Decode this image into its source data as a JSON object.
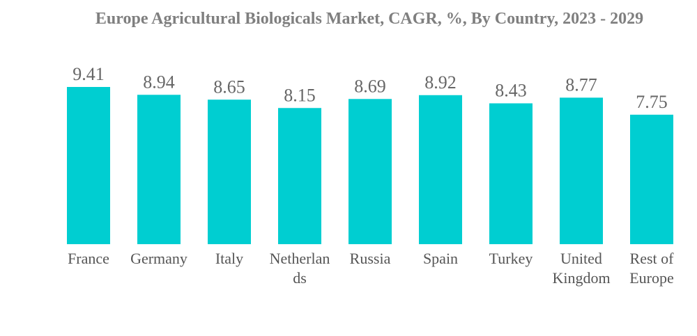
{
  "chart_data": {
    "type": "bar",
    "title": "Europe Agricultural Biologicals Market, CAGR, %, By Country, 2023 - 2029",
    "xlabel": "",
    "ylabel": "",
    "categories": [
      "France",
      "Germany",
      "Italy",
      "Netherlands",
      "Russia",
      "Spain",
      "Turkey",
      "United Kingdom",
      "Rest of Europe"
    ],
    "category_lines": [
      [
        "France"
      ],
      [
        "Germany"
      ],
      [
        "Italy"
      ],
      [
        "Netherlan",
        "ds"
      ],
      [
        "Russia"
      ],
      [
        "Spain"
      ],
      [
        "Turkey"
      ],
      [
        "United",
        "Kingdom"
      ],
      [
        "Rest of",
        "Europe"
      ]
    ],
    "values": [
      9.41,
      8.94,
      8.65,
      8.15,
      8.69,
      8.92,
      8.43,
      8.77,
      7.75
    ],
    "value_labels": [
      "9.41",
      "8.94",
      "8.65",
      "8.15",
      "8.69",
      "8.92",
      "8.43",
      "8.77",
      "7.75"
    ],
    "ylim": [
      0,
      9.41
    ],
    "grid": false,
    "legend": "none",
    "bar_color": "#00ced1"
  }
}
